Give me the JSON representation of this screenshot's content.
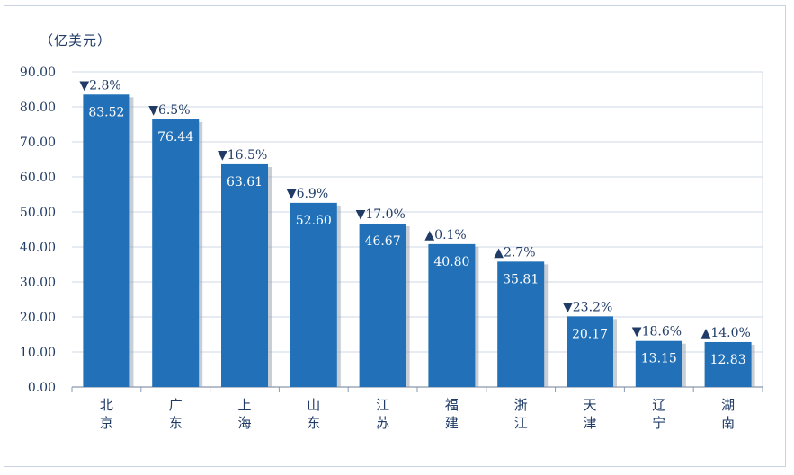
{
  "chart_data": {
    "type": "bar",
    "unit_label": "（亿美元）",
    "categories": [
      "北京",
      "广东",
      "上海",
      "山东",
      "江苏",
      "福建",
      "浙江",
      "天津",
      "辽宁",
      "湖南"
    ],
    "values": [
      83.52,
      76.44,
      63.61,
      52.6,
      46.67,
      40.8,
      35.81,
      20.17,
      13.15,
      12.83
    ],
    "value_labels": [
      "83.52",
      "76.44",
      "63.61",
      "52.60",
      "46.67",
      "40.80",
      "35.81",
      "20.17",
      "13.15",
      "12.83"
    ],
    "changes": [
      "▼2.8%",
      "▼6.5%",
      "▼16.5%",
      "▼6.9%",
      "▼17.0%",
      "▲0.1%",
      "▲2.7%",
      "▼23.2%",
      "▼18.6%",
      "▲14.0%"
    ],
    "yticks": [
      "0.00",
      "10.00",
      "20.00",
      "30.00",
      "40.00",
      "50.00",
      "60.00",
      "70.00",
      "80.00",
      "90.00"
    ],
    "ylim": [
      0,
      90
    ],
    "grid": true,
    "bar_color": "#2271b8",
    "text_color": "#1f3b66",
    "grid_color": "#cfd8e6"
  }
}
